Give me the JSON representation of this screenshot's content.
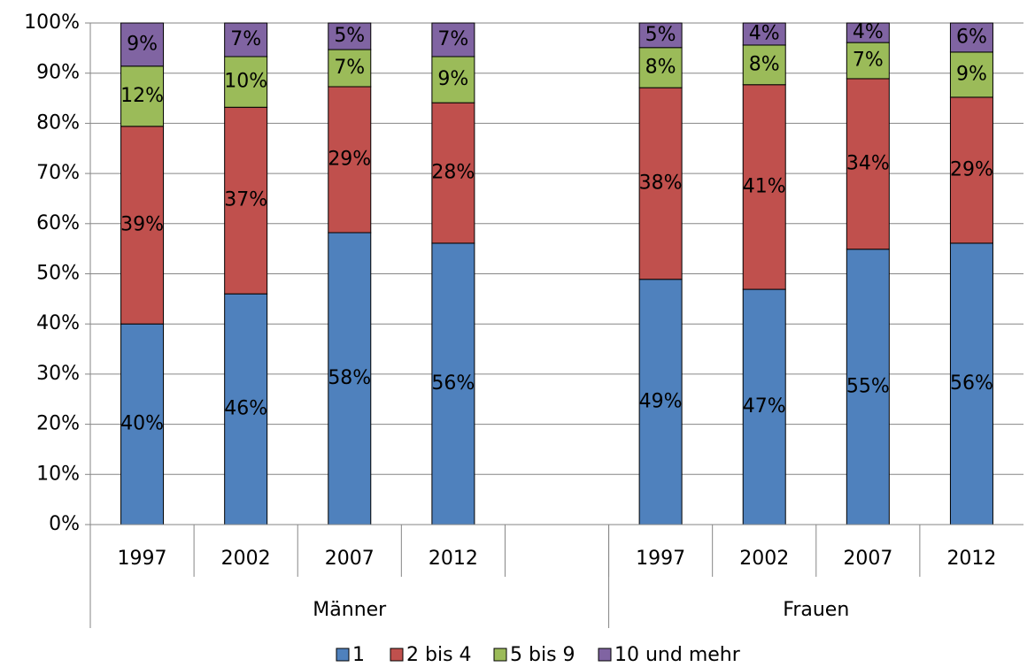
{
  "chart_data": {
    "type": "stacked_bar",
    "categories": [
      "1997",
      "2002",
      "2007",
      "2012",
      null,
      "1997",
      "2002",
      "2007",
      "2012"
    ],
    "groups": [
      "Männer",
      "Frauen"
    ],
    "series": [
      {
        "name": "1",
        "color": "#4f81bd",
        "values": [
          40.0,
          46.0,
          58.2,
          56.1,
          null,
          48.9,
          46.9,
          54.9,
          56.1
        ],
        "value_labels": [
          "40%",
          "46%",
          "58%",
          "56%",
          null,
          "49%",
          "47%",
          "55%",
          "56%"
        ]
      },
      {
        "name": "2 bis 4",
        "color": "#c0504d",
        "values": [
          39.4,
          37.2,
          29.1,
          28.0,
          null,
          38.2,
          40.8,
          34.0,
          29.1
        ],
        "value_labels": [
          "39%",
          "37%",
          "29%",
          "28%",
          null,
          "38%",
          "41%",
          "34%",
          "29%"
        ]
      },
      {
        "name": "5 bis 9",
        "color": "#9bbb59",
        "values": [
          12.0,
          10.1,
          7.4,
          9.2,
          null,
          8.0,
          7.9,
          7.2,
          9.0
        ],
        "value_labels": [
          "12%",
          "10%",
          "7%",
          "9%",
          null,
          "8%",
          "8%",
          "7%",
          "9%"
        ]
      },
      {
        "name": "10 und mehr",
        "color": "#8064a2",
        "values": [
          8.6,
          6.7,
          5.3,
          6.7,
          null,
          4.9,
          4.4,
          3.9,
          5.8
        ],
        "value_labels": [
          "9%",
          "7%",
          "5%",
          "7%",
          null,
          "5%",
          "4%",
          "4%",
          "6%"
        ]
      }
    ],
    "ylim": [
      0,
      100
    ],
    "yticks": [
      {
        "value": 0,
        "label": "0%"
      },
      {
        "value": 10,
        "label": "10%"
      },
      {
        "value": 20,
        "label": "20%"
      },
      {
        "value": 30,
        "label": "30%"
      },
      {
        "value": 40,
        "label": "40%"
      },
      {
        "value": 50,
        "label": "50%"
      },
      {
        "value": 60,
        "label": "60%"
      },
      {
        "value": 70,
        "label": "70%"
      },
      {
        "value": 80,
        "label": "80%"
      },
      {
        "value": 90,
        "label": "90%"
      },
      {
        "value": 100,
        "label": "100%"
      }
    ],
    "grid": true,
    "legend": "bottom"
  }
}
